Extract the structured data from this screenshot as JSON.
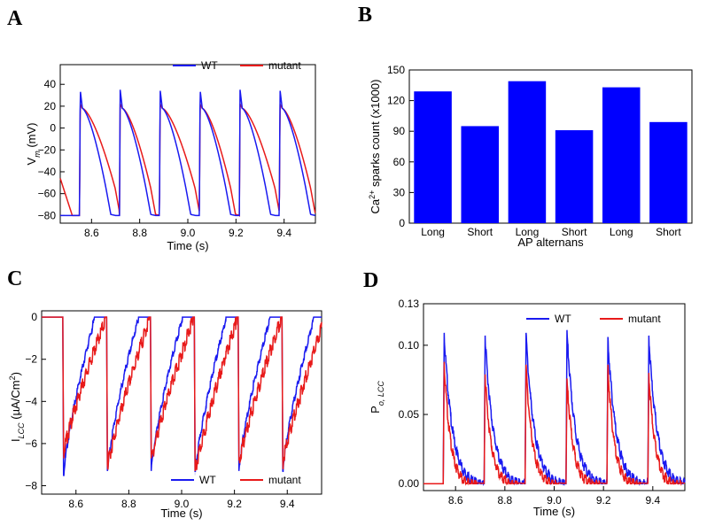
{
  "panels": [
    {
      "id": "A",
      "letter": "A"
    },
    {
      "id": "B",
      "letter": "B"
    },
    {
      "id": "C",
      "letter": "C"
    },
    {
      "id": "D",
      "letter": "D"
    }
  ],
  "colors": {
    "wt": "#1a1af0",
    "mutant": "#e81a1a",
    "bar": "#0000ff",
    "axis": "#000000"
  },
  "chart_data": [
    {
      "id": "A",
      "type": "line",
      "xlabel": "Time (s)",
      "ylabel": "V",
      "ylabel_sub": "m",
      "ylabel_unit": " (mV)",
      "xlim": [
        8.47,
        9.53
      ],
      "ylim": [
        -87,
        58
      ],
      "xticks": [
        8.6,
        8.8,
        9.0,
        9.2,
        9.4
      ],
      "xtick_labels": [
        "8.6",
        "8.8",
        "9.0",
        "9.2",
        "9.4"
      ],
      "yticks": [
        -80,
        -60,
        -40,
        -20,
        0,
        20,
        40
      ],
      "ytick_labels": [
        "−80",
        "−60",
        "−40",
        "−20",
        "0",
        "20",
        "40"
      ],
      "legend": [
        "WT",
        "mutant"
      ],
      "legend_position": "top-right",
      "beat_onsets_s": [
        8.55,
        8.716,
        8.882,
        9.048,
        9.214,
        9.38
      ],
      "series": [
        {
          "name": "WT",
          "rest_mV": -80,
          "peak_mV": 35,
          "plateau_mV": 18,
          "apd_s": 0.11
        },
        {
          "name": "mutant",
          "rest_mV": -80,
          "peak_mV": 22,
          "plateau_mV": 18,
          "apd_long_s": 0.148,
          "apd_short_s": 0.13
        }
      ]
    },
    {
      "id": "B",
      "type": "bar",
      "xlabel": "AP alternans",
      "ylabel_prefix": "Ca",
      "ylabel_sup": "2+",
      "ylabel_suffix": " sparks count (x1000)",
      "categories": [
        "Long",
        "Short",
        "Long",
        "Short",
        "Long",
        "Short"
      ],
      "values": [
        129,
        95,
        139,
        91,
        133,
        99
      ],
      "ylim": [
        0,
        150
      ],
      "yticks": [
        0,
        30,
        60,
        90,
        120,
        150
      ],
      "ytick_labels": [
        "0",
        "30",
        "60",
        "90",
        "120",
        "150"
      ]
    },
    {
      "id": "C",
      "type": "line",
      "xlabel": "Time (s)",
      "ylabel": "I",
      "ylabel_sub": "LCC",
      "ylabel_unit": " (µA/Cm",
      "ylabel_sup": "2",
      "ylabel_close": ")",
      "xlim": [
        8.47,
        9.53
      ],
      "ylim": [
        -8.4,
        0.3
      ],
      "xticks": [
        8.6,
        8.8,
        9.0,
        9.2,
        9.4
      ],
      "xtick_labels": [
        "8.6",
        "8.8",
        "9.0",
        "9.2",
        "9.4"
      ],
      "yticks": [
        -8,
        -6,
        -4,
        -2,
        0
      ],
      "ytick_labels": [
        "−8",
        "−6",
        "−4",
        "−2",
        "0"
      ],
      "legend": [
        "WT",
        "mutant"
      ],
      "legend_position": "bottom-right",
      "beat_onsets_s": [
        8.55,
        8.716,
        8.882,
        9.048,
        9.214,
        9.38
      ],
      "series": [
        {
          "name": "WT",
          "peaks": [
            -7.5,
            -7.3,
            -7.3,
            -7.5,
            -7.3,
            -7.3
          ],
          "recovery_s": 0.12
        },
        {
          "name": "mutant",
          "peaks": [
            -6.3,
            -7.0,
            -6.7,
            -7.3,
            -6.8,
            -6.8
          ],
          "recovery_s": 0.16
        }
      ]
    },
    {
      "id": "D",
      "type": "line",
      "xlabel": "Time (s)",
      "ylabel": "P",
      "ylabel_sub": "o, LCC",
      "xlim": [
        8.47,
        9.53
      ],
      "ylim": [
        -0.005,
        0.13
      ],
      "xticks": [
        8.6,
        8.8,
        9.0,
        9.2,
        9.4
      ],
      "xtick_labels": [
        "8.6",
        "8.8",
        "9.0",
        "9.2",
        "9.4"
      ],
      "yticks": [
        0.0,
        0.05,
        0.1,
        0.13
      ],
      "ytick_labels": [
        "0.00",
        "0.05",
        "0.10",
        "0.13"
      ],
      "legend": [
        "WT",
        "mutant"
      ],
      "legend_position": "top-right",
      "beat_onsets_s": [
        8.55,
        8.716,
        8.882,
        9.048,
        9.214,
        9.38
      ],
      "series": [
        {
          "name": "WT",
          "peaks": [
            0.109,
            0.107,
            0.109,
            0.111,
            0.106,
            0.107
          ],
          "decay_s": 0.11
        },
        {
          "name": "mutant",
          "peaks": [
            0.088,
            0.079,
            0.086,
            0.076,
            0.086,
            0.08
          ],
          "decay_s": 0.085
        }
      ]
    }
  ]
}
